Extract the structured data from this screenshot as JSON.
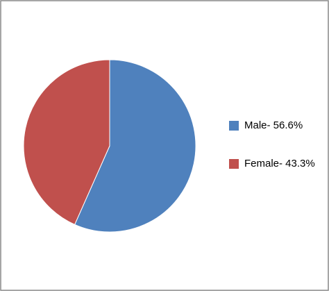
{
  "chart_data": {
    "type": "pie",
    "categories": [
      "Male- 56.6%",
      "Female- 43.3%"
    ],
    "values": [
      56.6,
      43.3
    ],
    "colors": [
      "#4f81bd",
      "#c0504d"
    ],
    "legend": "right"
  }
}
